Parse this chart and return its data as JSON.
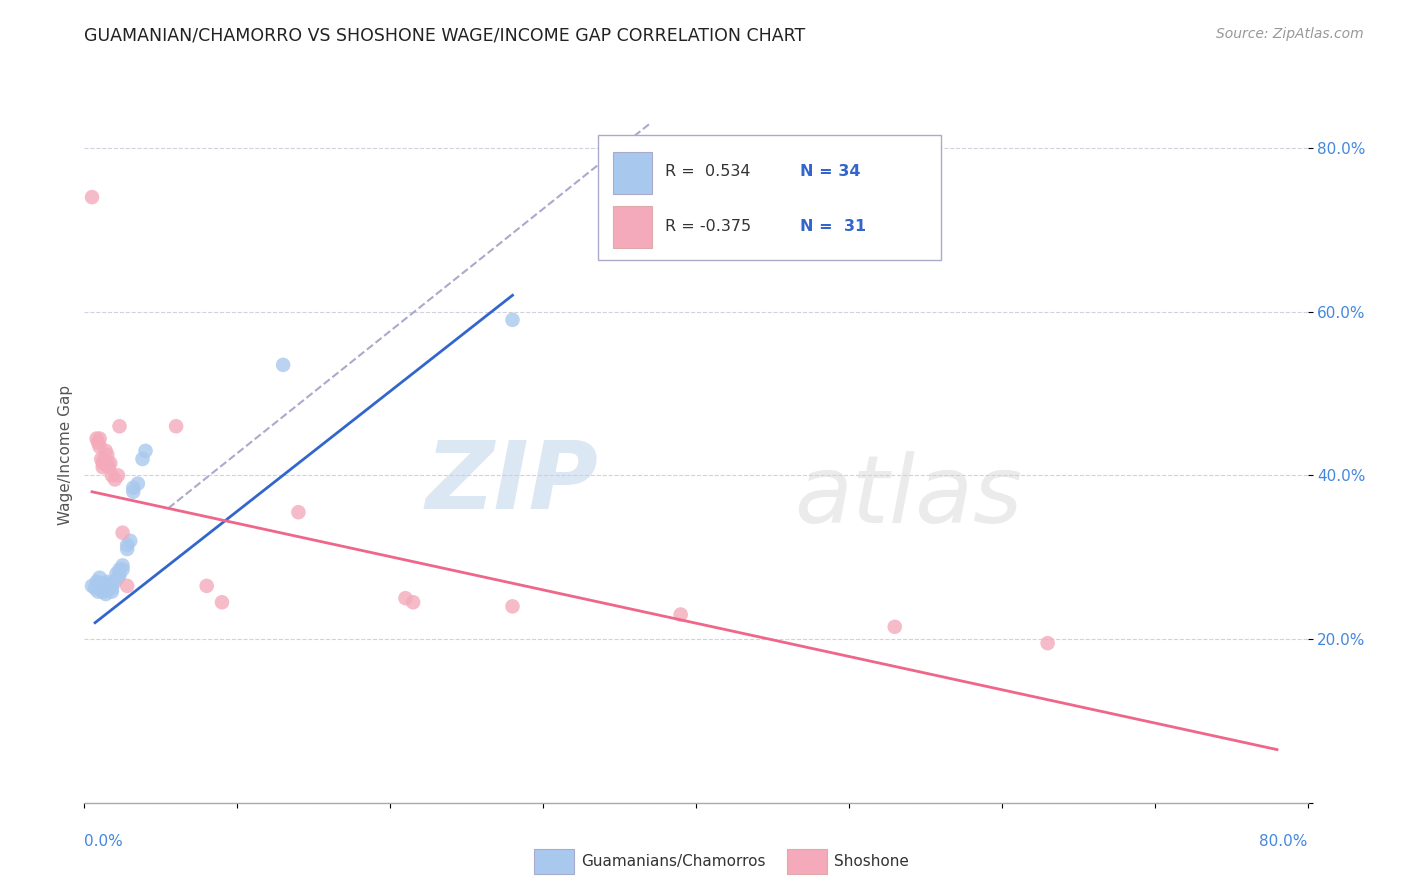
{
  "title": "GUAMANIAN/CHAMORRO VS SHOSHONE WAGE/INCOME GAP CORRELATION CHART",
  "source": "Source: ZipAtlas.com",
  "ylabel": "Wage/Income Gap",
  "xlim": [
    0.0,
    0.8
  ],
  "ylim": [
    0.0,
    0.85
  ],
  "yticks": [
    0.0,
    0.2,
    0.4,
    0.6,
    0.8
  ],
  "ytick_labels": [
    "",
    "20.0%",
    "40.0%",
    "60.0%",
    "80.0%"
  ],
  "watermark_zip": "ZIP",
  "watermark_atlas": "atlas",
  "legend_line1": "R =  0.534  N = 34",
  "legend_line2": "R = -0.375  N =  31",
  "blue_color": "#A8C8EE",
  "pink_color": "#F4AABB",
  "blue_line_color": "#3366CC",
  "pink_line_color": "#EE6688",
  "diag_line_color": "#AAAACC",
  "blue_scatter": [
    [
      0.005,
      0.265
    ],
    [
      0.007,
      0.262
    ],
    [
      0.008,
      0.27
    ],
    [
      0.009,
      0.258
    ],
    [
      0.01,
      0.275
    ],
    [
      0.01,
      0.268
    ],
    [
      0.011,
      0.26
    ],
    [
      0.012,
      0.258
    ],
    [
      0.012,
      0.265
    ],
    [
      0.013,
      0.262
    ],
    [
      0.014,
      0.255
    ],
    [
      0.015,
      0.27
    ],
    [
      0.015,
      0.26
    ],
    [
      0.016,
      0.265
    ],
    [
      0.017,
      0.268
    ],
    [
      0.018,
      0.262
    ],
    [
      0.018,
      0.258
    ],
    [
      0.02,
      0.27
    ],
    [
      0.021,
      0.28
    ],
    [
      0.022,
      0.275
    ],
    [
      0.023,
      0.285
    ],
    [
      0.023,
      0.278
    ],
    [
      0.025,
      0.29
    ],
    [
      0.025,
      0.285
    ],
    [
      0.028,
      0.31
    ],
    [
      0.028,
      0.315
    ],
    [
      0.03,
      0.32
    ],
    [
      0.032,
      0.38
    ],
    [
      0.032,
      0.385
    ],
    [
      0.035,
      0.39
    ],
    [
      0.038,
      0.42
    ],
    [
      0.04,
      0.43
    ],
    [
      0.13,
      0.535
    ],
    [
      0.28,
      0.59
    ]
  ],
  "pink_scatter": [
    [
      0.005,
      0.74
    ],
    [
      0.008,
      0.445
    ],
    [
      0.009,
      0.44
    ],
    [
      0.01,
      0.445
    ],
    [
      0.01,
      0.435
    ],
    [
      0.011,
      0.42
    ],
    [
      0.012,
      0.415
    ],
    [
      0.012,
      0.41
    ],
    [
      0.013,
      0.42
    ],
    [
      0.013,
      0.415
    ],
    [
      0.014,
      0.43
    ],
    [
      0.015,
      0.425
    ],
    [
      0.015,
      0.415
    ],
    [
      0.016,
      0.41
    ],
    [
      0.017,
      0.415
    ],
    [
      0.018,
      0.4
    ],
    [
      0.02,
      0.395
    ],
    [
      0.022,
      0.4
    ],
    [
      0.023,
      0.46
    ],
    [
      0.025,
      0.33
    ],
    [
      0.028,
      0.265
    ],
    [
      0.06,
      0.46
    ],
    [
      0.08,
      0.265
    ],
    [
      0.09,
      0.245
    ],
    [
      0.14,
      0.355
    ],
    [
      0.21,
      0.25
    ],
    [
      0.215,
      0.245
    ],
    [
      0.28,
      0.24
    ],
    [
      0.39,
      0.23
    ],
    [
      0.53,
      0.215
    ],
    [
      0.63,
      0.195
    ]
  ],
  "blue_trend_x": [
    0.007,
    0.28
  ],
  "blue_trend_y": [
    0.22,
    0.62
  ],
  "pink_trend_x": [
    0.005,
    0.78
  ],
  "pink_trend_y": [
    0.38,
    0.065
  ],
  "diag_trend_x": [
    0.055,
    0.37
  ],
  "diag_trend_y": [
    0.36,
    0.83
  ]
}
